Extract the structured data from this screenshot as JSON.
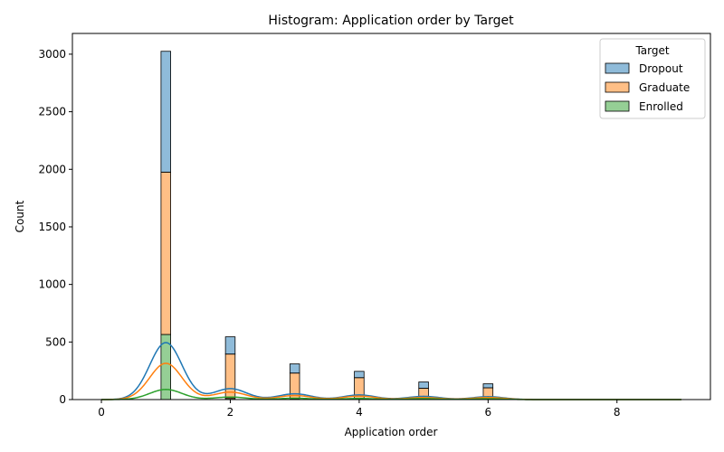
{
  "chart_data": {
    "type": "bar",
    "title": "Histogram: Application order by Target",
    "xlabel": "Application order",
    "ylabel": "Count",
    "xlim": [
      -0.45,
      9.45
    ],
    "ylim": [
      0,
      3180
    ],
    "xticks": [
      0,
      2,
      4,
      6,
      8
    ],
    "yticks": [
      0,
      500,
      1000,
      1500,
      2000,
      2500,
      3000
    ],
    "stacked": true,
    "bin_width": 0.15,
    "bin_centers": [
      1,
      2,
      3,
      4,
      5,
      6
    ],
    "legend": {
      "title": "Target",
      "position": "top-right"
    },
    "series": [
      {
        "name": "Enrolled",
        "color": "#2ca02c",
        "values": [
          565,
          10,
          5,
          5,
          3,
          2
        ]
      },
      {
        "name": "Graduate",
        "color": "#ff7f0e",
        "values": [
          1410,
          385,
          225,
          185,
          95,
          100
        ]
      },
      {
        "name": "Dropout",
        "color": "#1f77b4",
        "values": [
          1050,
          150,
          80,
          55,
          55,
          35
        ]
      }
    ],
    "kde": [
      {
        "name": "Dropout",
        "color": "#1f77b4",
        "peaks": [
          [
            1,
            495
          ],
          [
            2,
            95
          ],
          [
            3,
            50
          ],
          [
            4,
            40
          ],
          [
            5,
            28
          ],
          [
            6,
            25
          ]
        ]
      },
      {
        "name": "Graduate",
        "color": "#ff7f0e",
        "peaks": [
          [
            1,
            315
          ],
          [
            2,
            65
          ],
          [
            3,
            35
          ],
          [
            4,
            30
          ],
          [
            5,
            18
          ],
          [
            6,
            18
          ]
        ]
      },
      {
        "name": "Enrolled",
        "color": "#2ca02c",
        "peaks": [
          [
            1,
            88
          ],
          [
            2,
            22
          ],
          [
            3,
            12
          ],
          [
            4,
            10
          ],
          [
            5,
            8
          ],
          [
            6,
            7
          ]
        ]
      }
    ]
  }
}
